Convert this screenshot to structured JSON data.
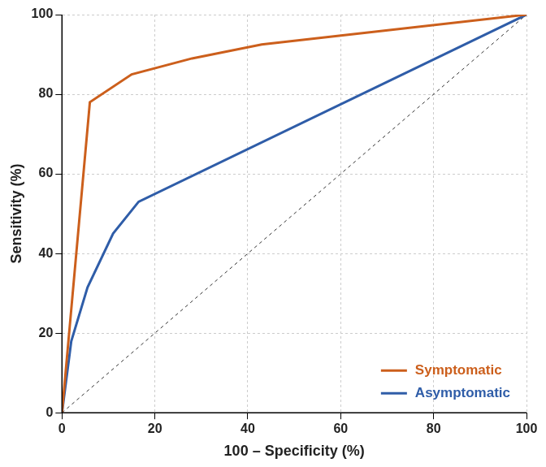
{
  "chart_data": {
    "type": "line",
    "x_label": "100 – Specificity (%)",
    "y_label": "Sensitivity (%)",
    "xlim": [
      0,
      100
    ],
    "ylim": [
      0,
      100
    ],
    "xticks": [
      0,
      20,
      40,
      60,
      80,
      100
    ],
    "yticks": [
      0,
      20,
      40,
      60,
      80,
      100
    ],
    "grid": true,
    "legend": "bottom right",
    "series": [
      {
        "name": "Symptomatic",
        "color": "#cc5f1c",
        "line_style": "solid",
        "x": [
          0,
          6,
          15,
          28,
          43,
          100
        ],
        "values": [
          0,
          78,
          85,
          89,
          92.5,
          100
        ]
      },
      {
        "name": "Asymptomatic",
        "color": "#2f5da8",
        "line_style": "solid",
        "x": [
          0,
          2,
          5.5,
          11,
          16.5,
          100
        ],
        "values": [
          0,
          18,
          31.5,
          45,
          53,
          100
        ]
      },
      {
        "color": "#333333",
        "line_style": "dashed",
        "x": [
          0,
          100
        ],
        "values": [
          0,
          100
        ]
      }
    ]
  }
}
